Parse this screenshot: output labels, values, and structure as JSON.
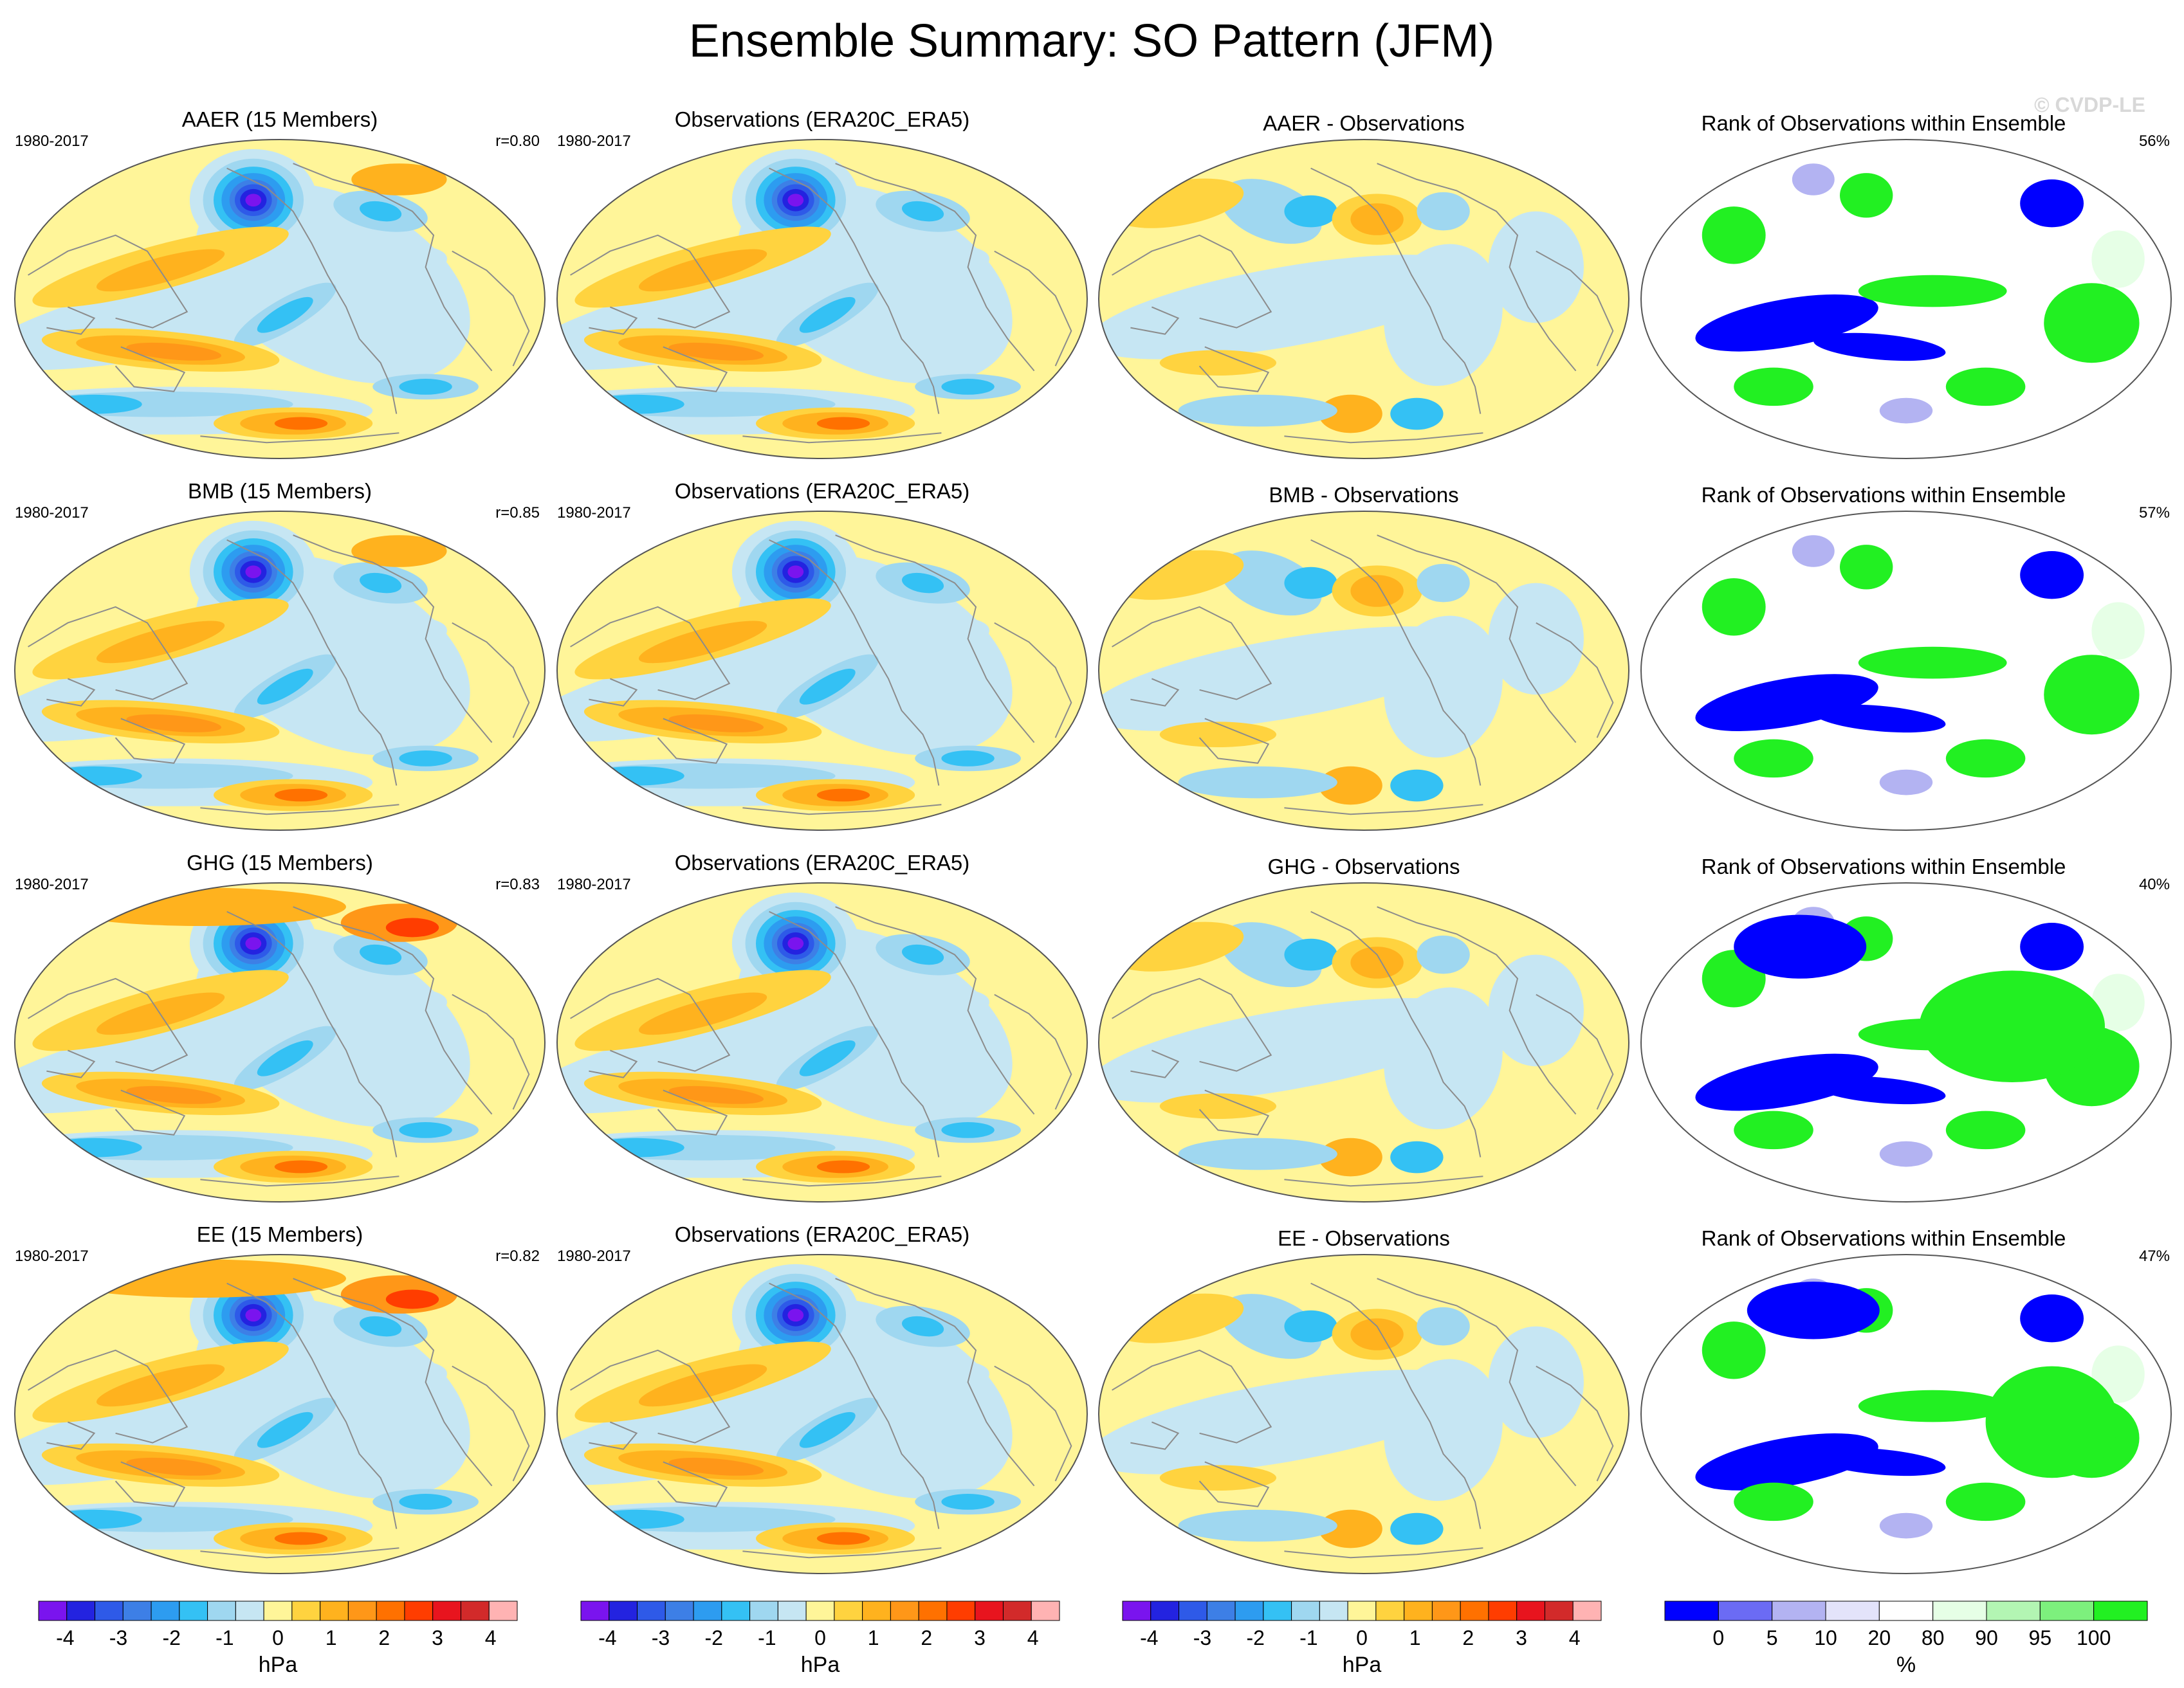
{
  "title": "Ensemble Summary: SO Pattern (JFM)",
  "watermark": "© CVDP-LE",
  "chart_data": {
    "type": "map-panels",
    "rows": [
      {
        "key": "AAER",
        "model_title": "AAER (15 Members)",
        "period": "1980-2017",
        "r": "r=0.80",
        "obs_title": "Observations (ERA20C_ERA5)",
        "obs_period": "1980-2017",
        "diff_title": "AAER - Observations",
        "rank_title": "Rank of Observations within Ensemble",
        "rank_pct": "56%"
      },
      {
        "key": "BMB",
        "model_title": "BMB (15 Members)",
        "period": "1980-2017",
        "r": "r=0.85",
        "obs_title": "Observations (ERA20C_ERA5)",
        "obs_period": "1980-2017",
        "diff_title": "BMB - Observations",
        "rank_title": "Rank of Observations within Ensemble",
        "rank_pct": "57%"
      },
      {
        "key": "GHG",
        "model_title": "GHG (15 Members)",
        "period": "1980-2017",
        "r": "r=0.83",
        "obs_title": "Observations (ERA20C_ERA5)",
        "obs_period": "1980-2017",
        "diff_title": "GHG - Observations",
        "rank_title": "Rank of Observations within Ensemble",
        "rank_pct": "40%"
      },
      {
        "key": "EE",
        "model_title": "EE (15 Members)",
        "period": "1980-2017",
        "r": "r=0.82",
        "obs_title": "Observations (ERA20C_ERA5)",
        "obs_period": "1980-2017",
        "diff_title": "EE - Observations",
        "rank_title": "Rank of Observations within Ensemble",
        "rank_pct": "47%"
      }
    ],
    "hpa_colorbar": {
      "unit_label": "hPa",
      "colors": [
        "#7a14ee",
        "#2323e0",
        "#2e5ae8",
        "#3d7fe6",
        "#2d9cf0",
        "#34c1f4",
        "#9fd7f0",
        "#c6e6f3",
        "#fff599",
        "#ffd33f",
        "#ffb21e",
        "#ff9718",
        "#ff7100",
        "#ff3d00",
        "#e8141e",
        "#d22a2a",
        "#ffb3b3"
      ],
      "tick_labels": [
        "-4",
        "-3",
        "-2",
        "-1",
        "0",
        "1",
        "2",
        "3",
        "4"
      ],
      "tick_values": [
        -4,
        -3,
        -2,
        -1,
        0,
        1,
        2,
        3,
        4
      ],
      "range": [
        -4.5,
        4.5
      ]
    },
    "rank_colorbar": {
      "unit_label": "%",
      "colors": [
        "#0000ff",
        "#6b6bf4",
        "#b3b3f2",
        "#e3e3fa",
        "#ffffff",
        "#e6ffe6",
        "#b3f5b3",
        "#7df07d",
        "#22f022"
      ],
      "tick_labels": [
        "0",
        "5",
        "10",
        "20",
        "80",
        "90",
        "95",
        "100"
      ],
      "tick_boundaries": [
        1,
        2,
        3,
        4,
        5,
        6,
        7,
        8
      ]
    },
    "pattern_colors": {
      "ocean_yellow": "#fff599",
      "light_blue": "#c6e6f3",
      "mid_blue": "#9fd7f0",
      "deep_low_core": "#7a14ee",
      "positive_orange": "#ffb21e",
      "strong_orange": "#ff7100"
    }
  }
}
